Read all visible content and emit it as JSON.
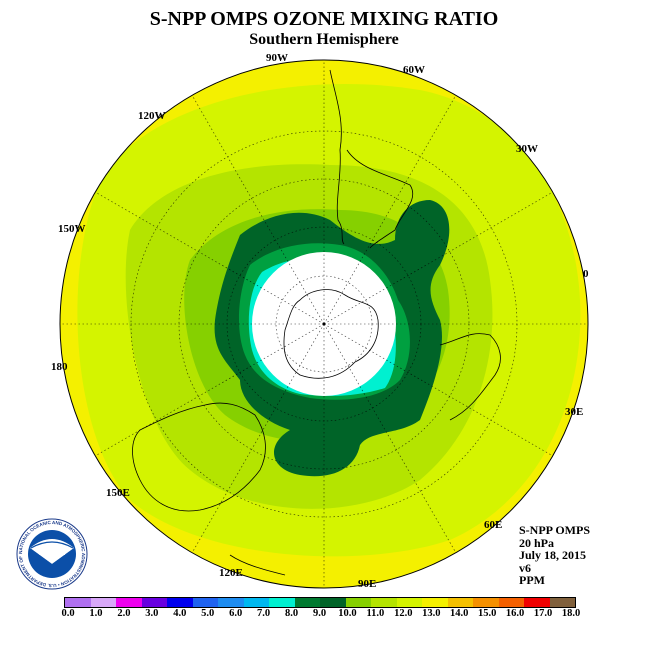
{
  "title": "S-NPP OMPS OZONE MIXING RATIO",
  "subtitle": "Southern Hemisphere",
  "lon_labels": {
    "w90": "90W",
    "w60": "60W",
    "w120": "120W",
    "w30": "30W",
    "w150": "150W",
    "zero": "0",
    "d180": "180",
    "e30": "30E",
    "e150": "150E",
    "e60": "60E",
    "e120": "120E",
    "e90": "90E"
  },
  "info": {
    "instrument": "S-NPP OMPS",
    "level": "20 hPa",
    "date": "July 18, 2015",
    "version": "v6",
    "units": "PPM"
  },
  "logo": {
    "text": "NOAA",
    "ring_text": "NATIONAL OCEANIC AND ATMOSPHERIC ADMINISTRATION • U.S. DEPARTMENT OF COMMERCE"
  },
  "colorbar": {
    "ticks": [
      "0.0",
      "1.0",
      "2.0",
      "3.0",
      "4.0",
      "5.0",
      "6.0",
      "7.0",
      "8.0",
      "9.0",
      "10.0",
      "11.0",
      "12.0",
      "13.0",
      "14.0",
      "15.0",
      "16.0",
      "17.0",
      "18.0"
    ],
    "colors": [
      "#b070f0",
      "#d8a8f8",
      "#ee00ee",
      "#6800e0",
      "#0000ee",
      "#1f63f0",
      "#1e8cf0",
      "#00b8f0",
      "#00f0d0",
      "#007a30",
      "#006428",
      "#86d000",
      "#b4e400",
      "#d4f400",
      "#f4f000",
      "#f4c000",
      "#f49000",
      "#f46000",
      "#f00000",
      "#80603c"
    ]
  },
  "map_colors": {
    "outer_yellow": "#f4f000",
    "yellow_green": "#d4f400",
    "light_green": "#b4e400",
    "mid_green": "#86d000",
    "teal_green": "#00a040",
    "dark_green": "#006428",
    "cyan": "#00f0d0",
    "no_data": "#ffffff"
  }
}
